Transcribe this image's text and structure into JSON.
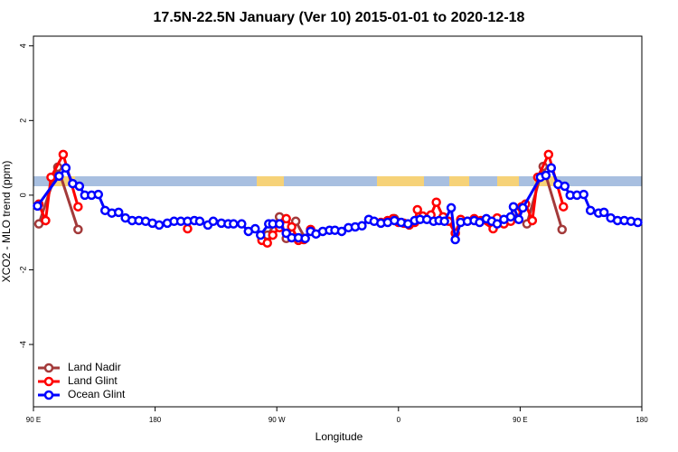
{
  "chart_data": {
    "type": "line",
    "title": "17.5N-22.5N January (Ver 10)   2015-01-01 to 2020-12-18",
    "x_label": "Longitude",
    "y_label": "XCO2 - MLO trend (ppm)",
    "xlim": [
      90,
      540
    ],
    "xticks": [
      {
        "value": 90,
        "label": "90 E"
      },
      180,
      {
        "value": 270,
        "label": "90 W"
      },
      {
        "value": 360,
        "label": "0"
      },
      {
        "value": 450,
        "label": "90 E"
      },
      {
        "value": 540,
        "label": "180"
      }
    ],
    "ylim": [
      -5.67,
      4.26
    ],
    "yticks": [
      -4,
      -2,
      0,
      2,
      4
    ],
    "legend": "bottom-left",
    "series": [
      {
        "name": "Land Nadir",
        "color": "#a33a3a",
        "x": [
          94,
          108,
          123,
          null,
          263,
          272,
          277,
          284,
          291,
          null,
          357,
          null,
          455,
          467,
          481
        ],
        "values": [
          -0.77,
          0.75,
          -0.92,
          null,
          -1.07,
          -0.58,
          -1.16,
          -0.7,
          -1.16,
          null,
          -0.63,
          null,
          -0.77,
          0.77,
          -0.92
        ]
      },
      {
        "name": "Land Glint",
        "color": "#ff0000",
        "x": [
          94,
          99,
          103,
          112,
          123,
          null,
          204,
          null,
          259,
          263,
          267,
          272,
          277,
          281,
          286,
          290,
          295,
          null,
          347,
          352,
          356,
          360,
          364,
          368,
          372,
          374,
          378,
          384,
          388,
          393,
          397,
          402,
          406,
          411,
          416,
          421,
          430,
          433,
          438,
          443,
          447,
          451,
          454,
          459,
          463,
          471,
          482
        ],
        "values": [
          -0.24,
          -0.68,
          0.48,
          1.09,
          -0.31,
          null,
          -0.9,
          null,
          -1.21,
          -1.28,
          -1.07,
          -0.87,
          -0.63,
          -0.85,
          -1.21,
          -1.19,
          -0.92,
          null,
          -0.73,
          -0.68,
          -0.63,
          -0.73,
          -0.75,
          -0.8,
          -0.73,
          -0.39,
          -0.56,
          -0.53,
          -0.19,
          -0.58,
          -0.7,
          -1.02,
          -0.65,
          -0.7,
          -0.63,
          -0.68,
          -0.9,
          -0.61,
          -0.77,
          -0.7,
          -0.46,
          -0.31,
          -0.24,
          -0.68,
          0.48,
          1.09,
          -0.31
        ]
      },
      {
        "name": "Ocean Glint",
        "color": "#0000ff",
        "x": [
          93,
          109,
          114,
          119,
          124,
          128,
          133,
          138,
          143,
          148,
          153,
          158,
          163,
          168,
          173,
          178,
          183,
          189,
          194,
          199,
          204,
          209,
          213,
          219,
          223,
          229,
          234,
          238,
          244,
          249,
          254,
          258,
          264,
          267,
          272,
          277,
          281,
          286,
          291,
          295,
          299,
          304,
          309,
          313,
          318,
          323,
          328,
          333,
          338,
          342,
          347,
          352,
          357,
          362,
          367,
          372,
          376,
          381,
          386,
          390,
          394,
          399,
          402,
          406,
          411,
          416,
          420,
          425,
          429,
          433,
          438,
          443,
          445,
          449,
          452,
          465,
          469,
          473,
          478,
          483,
          487,
          492,
          497,
          502,
          508,
          512,
          517,
          522,
          527,
          532,
          537
        ],
        "values": [
          -0.29,
          0.51,
          0.73,
          0.31,
          0.24,
          0,
          0,
          0.02,
          -0.41,
          -0.48,
          -0.46,
          -0.61,
          -0.68,
          -0.68,
          -0.7,
          -0.75,
          -0.8,
          -0.75,
          -0.7,
          -0.7,
          -0.7,
          -0.68,
          -0.7,
          -0.8,
          -0.7,
          -0.75,
          -0.77,
          -0.77,
          -0.77,
          -0.97,
          -0.9,
          -1.07,
          -0.77,
          -0.77,
          -0.77,
          -1.02,
          -1.14,
          -1.14,
          -1.16,
          -0.97,
          -1.04,
          -0.97,
          -0.94,
          -0.94,
          -0.97,
          -0.87,
          -0.85,
          -0.82,
          -0.65,
          -0.7,
          -0.75,
          -0.73,
          -0.68,
          -0.73,
          -0.77,
          -0.68,
          -0.65,
          -0.65,
          -0.7,
          -0.68,
          -0.7,
          -0.34,
          -1.19,
          -0.73,
          -0.7,
          -0.68,
          -0.73,
          -0.63,
          -0.7,
          -0.77,
          -0.65,
          -0.58,
          -0.31,
          -0.65,
          -0.34,
          0.48,
          0.53,
          0.73,
          0.29,
          0.24,
          0,
          0,
          0.02,
          -0.41,
          -0.48,
          -0.46,
          -0.61,
          -0.68,
          -0.68,
          -0.7,
          -0.73
        ]
      }
    ]
  }
}
